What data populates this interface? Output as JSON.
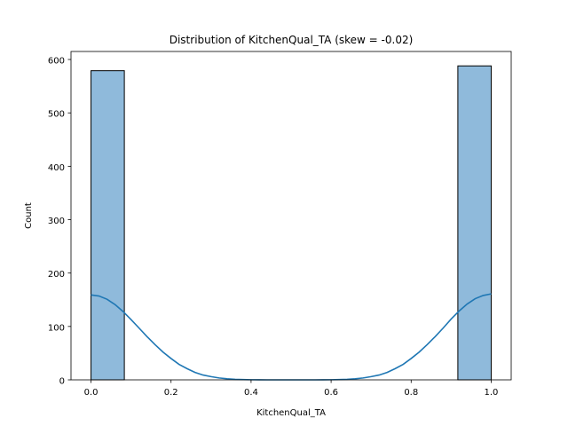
{
  "chart_data": {
    "type": "histogram",
    "title": "Distribution of KitchenQual_TA (skew = -0.02)",
    "xlabel": "KitchenQual_TA",
    "ylabel": "Count",
    "xlim": [
      -0.05,
      1.05
    ],
    "ylim": [
      0,
      615
    ],
    "xticks": [
      0.0,
      0.2,
      0.4,
      0.6,
      0.8,
      1.0
    ],
    "xtick_labels": [
      "0.0",
      "0.2",
      "0.4",
      "0.6",
      "0.8",
      "1.0"
    ],
    "yticks": [
      0,
      100,
      200,
      300,
      400,
      500,
      600
    ],
    "ytick_labels": [
      "0",
      "100",
      "200",
      "300",
      "400",
      "500",
      "600"
    ],
    "bins": [
      {
        "x0": 0.0,
        "x1": 0.0833,
        "count": 579
      },
      {
        "x0": 0.9167,
        "x1": 1.0,
        "count": 588
      }
    ],
    "kde": {
      "x": [
        0.0,
        0.02,
        0.04,
        0.06,
        0.08,
        0.1,
        0.12,
        0.14,
        0.16,
        0.18,
        0.2,
        0.22,
        0.24,
        0.26,
        0.28,
        0.3,
        0.32,
        0.34,
        0.36,
        0.38,
        0.4,
        0.42,
        0.44,
        0.46,
        0.48,
        0.5,
        0.52,
        0.54,
        0.56,
        0.58,
        0.6,
        0.62,
        0.64,
        0.66,
        0.68,
        0.7,
        0.72,
        0.74,
        0.76,
        0.78,
        0.8,
        0.82,
        0.84,
        0.86,
        0.88,
        0.9,
        0.92,
        0.94,
        0.96,
        0.98,
        1.0
      ],
      "y": [
        159,
        157,
        151,
        141,
        128,
        113,
        97,
        81,
        66,
        52,
        40,
        29,
        21,
        14,
        9,
        6,
        3.5,
        2,
        1,
        0.5,
        0.2,
        0.1,
        0,
        0,
        0,
        0,
        0,
        0,
        0,
        0.1,
        0.2,
        0.5,
        1,
        2,
        3.5,
        6,
        9,
        14,
        21,
        29,
        40,
        52,
        66,
        81,
        97,
        114,
        129,
        142,
        152,
        158,
        161
      ]
    },
    "colors": {
      "bar_fill": "#8fbadb",
      "bar_edge": "#000000",
      "kde_line": "#1f77b4"
    },
    "grid": false,
    "legend": "none"
  }
}
